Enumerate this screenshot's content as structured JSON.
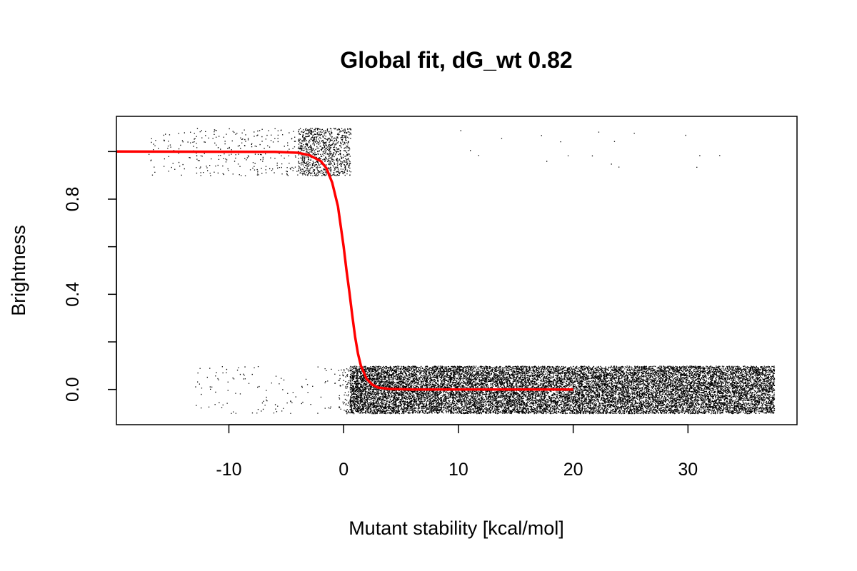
{
  "chart_data": {
    "type": "scatter",
    "title": "Global fit, dG_wt 0.82",
    "xlabel": "Mutant stability [kcal/mol]",
    "ylabel": "Brightness",
    "xlim": [
      -19.8,
      39.5
    ],
    "ylim": [
      -0.148,
      1.148
    ],
    "x_ticks": [
      -10,
      0,
      10,
      20,
      30
    ],
    "y_ticks": [
      0.0,
      0.2,
      0.4,
      0.6,
      0.8,
      1.0
    ],
    "y_tick_labels": [
      "0.0",
      "0.4",
      "0.8"
    ],
    "y_tick_label_values": [
      0.0,
      0.4,
      0.8
    ],
    "series": [
      {
        "type": "scatter",
        "color": "#000000",
        "point_groups": [
          {
            "x_range": [
              -17,
              -2.5
            ],
            "y_range": [
              0.9,
              1.1
            ],
            "count": 320
          },
          {
            "x_range": [
              -4,
              0.6
            ],
            "y_range": [
              0.9,
              1.1
            ],
            "count": 950
          },
          {
            "x_range": [
              10,
              33
            ],
            "y_range": [
              0.93,
              1.1
            ],
            "count": 18
          },
          {
            "x_range": [
              -13,
              -0.5
            ],
            "y_range": [
              -0.1,
              0.1
            ],
            "count": 110
          },
          {
            "x_range": [
              -0.5,
              0.5
            ],
            "y_range": [
              -0.1,
              0.1
            ],
            "count": 70
          },
          {
            "x_range": [
              0.5,
              5
            ],
            "y_range": [
              -0.1,
              0.1
            ],
            "count": 2500
          },
          {
            "x_range": [
              5,
              37.5
            ],
            "y_range": [
              -0.1,
              0.1
            ],
            "count": 16000
          }
        ]
      },
      {
        "type": "line",
        "color": "#ff0000",
        "x": [
          -19.8,
          -6,
          -4,
          -3,
          -2,
          -1.5,
          -1,
          -0.5,
          0,
          0.25,
          0.5,
          0.75,
          1,
          1.25,
          1.5,
          2,
          2.5,
          3,
          4,
          6,
          10,
          20
        ],
        "y": [
          1.0,
          0.999,
          0.995,
          0.985,
          0.96,
          0.93,
          0.87,
          0.77,
          0.6,
          0.5,
          0.41,
          0.31,
          0.22,
          0.15,
          0.1,
          0.045,
          0.02,
          0.008,
          0.002,
          0.0,
          0.0,
          0.0
        ]
      }
    ],
    "grid": false,
    "legend": "none"
  }
}
